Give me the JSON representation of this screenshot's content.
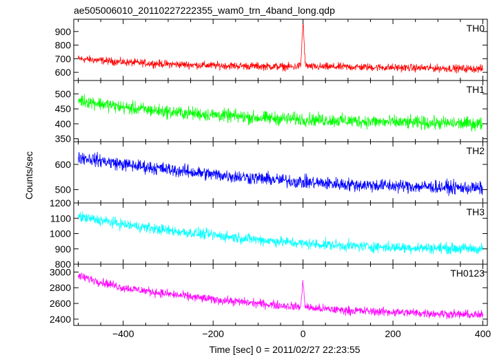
{
  "chart_data": {
    "type": "line",
    "title": "ae505006010_20110227222355_wam0_trn_4band_long.qdp",
    "xlabel": "Time [sec] 0 = 2011/02/27 22:23:55",
    "ylabel": "Counts/sec",
    "xlim": [
      -510,
      410
    ],
    "xticks": [
      "−400",
      "−200",
      "0",
      "200",
      "400"
    ],
    "grid": false,
    "legend": "none",
    "panels": [
      {
        "name": "TH0",
        "color": "#ff0000",
        "ylim": [
          540,
          990
        ],
        "yticks": [
          "600",
          "700",
          "800",
          "900"
        ],
        "x": [
          -500,
          -400,
          -300,
          -200,
          -100,
          -20,
          -5,
          0,
          5,
          20,
          100,
          200,
          300,
          400
        ],
        "y": [
          700,
          675,
          660,
          650,
          645,
          640,
          650,
          980,
          650,
          640,
          640,
          635,
          630,
          625
        ],
        "noise": 28
      },
      {
        "name": "TH1",
        "color": "#00ff00",
        "ylim": [
          340,
          545
        ],
        "yticks": [
          "350",
          "400",
          "450",
          "500"
        ],
        "x": [
          -500,
          -400,
          -300,
          -200,
          -100,
          0,
          100,
          200,
          300,
          400
        ],
        "y": [
          480,
          455,
          440,
          430,
          420,
          415,
          410,
          405,
          402,
          400
        ],
        "noise": 22
      },
      {
        "name": "TH2",
        "color": "#0000ff",
        "ylim": [
          447,
          690
        ],
        "yticks": [
          "500",
          "600"
        ],
        "x": [
          -500,
          -400,
          -300,
          -200,
          -100,
          0,
          100,
          200,
          300,
          400
        ],
        "y": [
          630,
          600,
          580,
          560,
          545,
          530,
          520,
          515,
          510,
          505
        ],
        "noise": 26
      },
      {
        "name": "TH3",
        "color": "#00ffff",
        "ylim": [
          800,
          1200
        ],
        "yticks": [
          "800",
          "900",
          "1000",
          "1100",
          "1200"
        ],
        "x": [
          -500,
          -400,
          -300,
          -200,
          -100,
          0,
          100,
          200,
          300,
          400
        ],
        "y": [
          1110,
          1060,
          1020,
          990,
          960,
          935,
          920,
          910,
          905,
          900
        ],
        "noise": 35
      },
      {
        "name": "TH0123",
        "color": "#ff00ff",
        "ylim": [
          2320,
          3100
        ],
        "yticks": [
          "2400",
          "2600",
          "2800",
          "3000"
        ],
        "x": [
          -500,
          -400,
          -300,
          -200,
          -100,
          -20,
          -5,
          0,
          5,
          20,
          100,
          200,
          300,
          400
        ],
        "y": [
          2950,
          2800,
          2720,
          2650,
          2600,
          2560,
          2560,
          2880,
          2560,
          2540,
          2510,
          2490,
          2470,
          2450
        ],
        "noise": 55
      }
    ]
  }
}
